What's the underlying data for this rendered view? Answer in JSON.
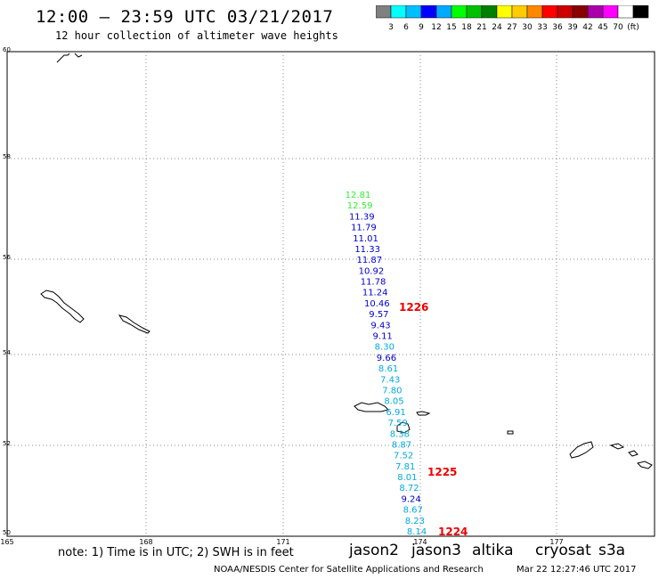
{
  "header": {
    "title": "12:00 – 23:59 UTC 03/21/2017",
    "subtitle": "12 hour collection of altimeter wave heights"
  },
  "colorbar": {
    "colors": [
      "#808080",
      "#00ffff",
      "#00bfff",
      "#0000ff",
      "#00aaff",
      "#00ff00",
      "#00c000",
      "#008000",
      "#ffff00",
      "#ffcc00",
      "#ff8800",
      "#ff0000",
      "#cc0000",
      "#880000",
      "#aa00aa",
      "#ff00ff",
      "#ffffff",
      "#000000"
    ],
    "labels": [
      "3",
      "6",
      "9",
      "12",
      "15",
      "18",
      "21",
      "24",
      "27",
      "30",
      "33",
      "36",
      "39",
      "42",
      "45",
      "70",
      "(ft)"
    ]
  },
  "axes": {
    "lon_labels": [
      "165",
      "168",
      "171",
      "174",
      "177"
    ],
    "lat_labels": [
      "60",
      "58",
      "56",
      "54",
      "52",
      "50"
    ]
  },
  "observations": [
    {
      "value": "12.81",
      "color": "#33ee33"
    },
    {
      "value": "12.59",
      "color": "#33ee33"
    },
    {
      "value": "11.39",
      "color": "#0000cc"
    },
    {
      "value": "11.79",
      "color": "#0000cc"
    },
    {
      "value": "11.01",
      "color": "#0000cc"
    },
    {
      "value": "11.33",
      "color": "#0000cc"
    },
    {
      "value": "11.87",
      "color": "#0000cc"
    },
    {
      "value": "10.92",
      "color": "#0000cc"
    },
    {
      "value": "11.78",
      "color": "#0000cc"
    },
    {
      "value": "11.24",
      "color": "#0000cc"
    },
    {
      "value": "10.46",
      "color": "#0000cc"
    },
    {
      "value": "9.57",
      "color": "#0000cc"
    },
    {
      "value": "9.43",
      "color": "#0000cc"
    },
    {
      "value": "9.11",
      "color": "#0000cc"
    },
    {
      "value": "8.30",
      "color": "#00aadd"
    },
    {
      "value": "9.66",
      "color": "#0000cc"
    },
    {
      "value": "8.61",
      "color": "#00aadd"
    },
    {
      "value": "7.43",
      "color": "#00aadd"
    },
    {
      "value": "7.80",
      "color": "#00aadd"
    },
    {
      "value": "8.05",
      "color": "#00aadd"
    },
    {
      "value": "6.91",
      "color": "#00aadd"
    },
    {
      "value": "7.59",
      "color": "#00aadd"
    },
    {
      "value": "8.38",
      "color": "#00aadd"
    },
    {
      "value": "8.87",
      "color": "#00aadd"
    },
    {
      "value": "7.52",
      "color": "#00aadd"
    },
    {
      "value": "7.81",
      "color": "#00aadd"
    },
    {
      "value": "8.01",
      "color": "#00aadd"
    },
    {
      "value": "8.72",
      "color": "#00aadd"
    },
    {
      "value": "9.24",
      "color": "#0000cc"
    },
    {
      "value": "8.67",
      "color": "#00aadd"
    },
    {
      "value": "8.23",
      "color": "#00aadd"
    },
    {
      "value": "8.14",
      "color": "#00aadd"
    }
  ],
  "time_labels": [
    "1226",
    "1225",
    "1224"
  ],
  "footer": {
    "note": "note:  1) Time is in UTC; 2) SWH is in feet",
    "credit": "NOAA/NESDIS Center for Satellite Applications and Research",
    "timestamp": "Mar 22 12:27:46 UTC 2017"
  },
  "satellites": [
    {
      "name": "jason2",
      "color": "#0000ff"
    },
    {
      "name": "jason3",
      "color": "#008800"
    },
    {
      "name": "altika",
      "color": "#ff8800"
    },
    {
      "name": "cryosat",
      "color": "#cc0000"
    },
    {
      "name": "s3a",
      "color": "#880000"
    }
  ]
}
